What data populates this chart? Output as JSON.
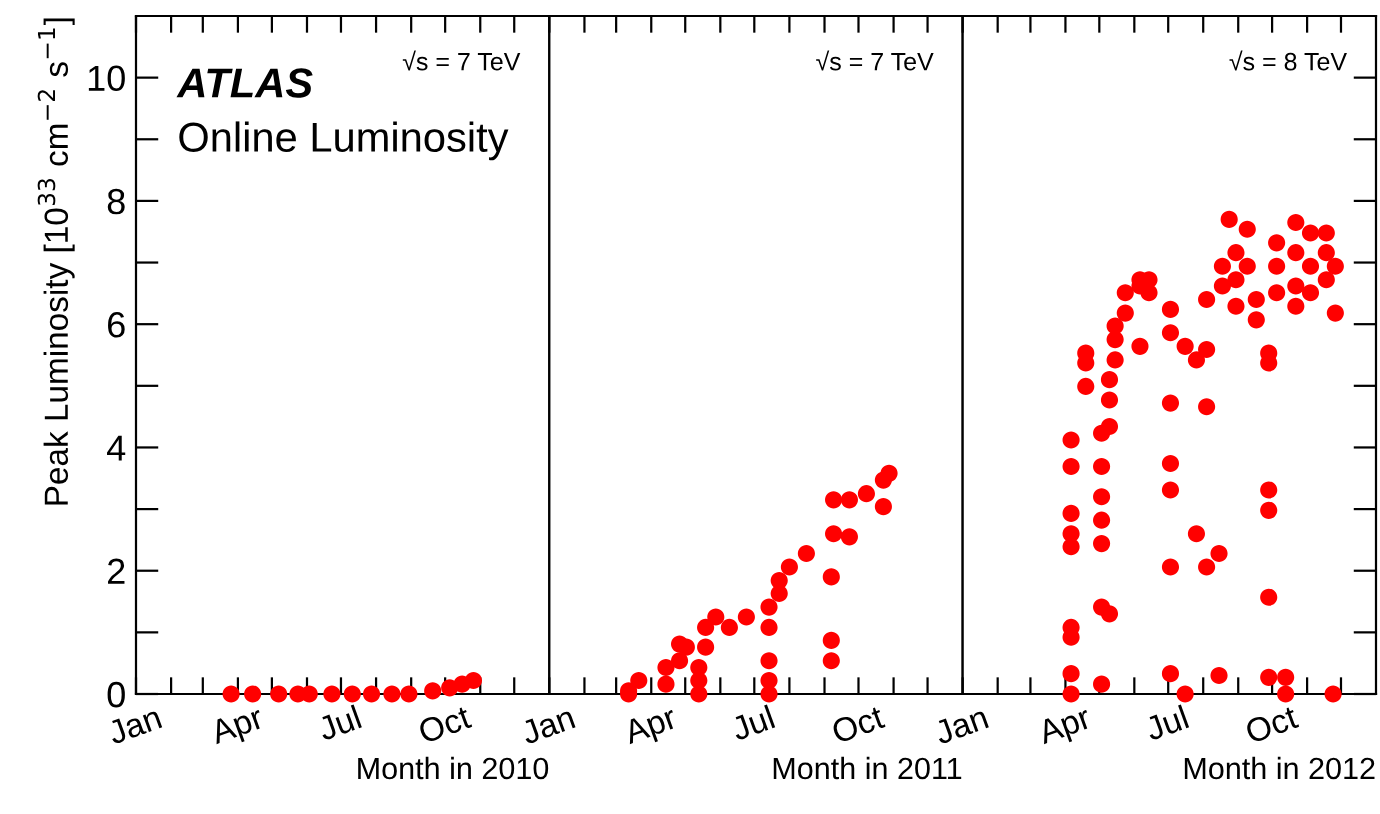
{
  "chart_data": [
    {
      "type": "scatter",
      "xlabel": "Month in 2010",
      "ylabel": "Peak Luminosity [10$^{33}$ cm$^{−2}$ s$^{−1}$]",
      "annotations": [
        "ATLAS",
        "Online Luminosity",
        "√s = 7 TeV"
      ],
      "x": [
        "2010-03-26",
        "2010-04-14",
        "2010-05-07",
        "2010-05-24",
        "2010-06-03",
        "2010-06-23",
        "2010-07-11",
        "2010-07-28",
        "2010-08-15",
        "2010-08-30",
        "2010-09-20",
        "2010-10-05",
        "2010-10-16",
        "2010-10-26"
      ],
      "values": [
        0,
        0,
        0,
        0,
        0,
        0,
        0,
        0,
        0,
        0,
        0.05,
        0.1,
        0.16,
        0.22
      ],
      "color": "#ff0000",
      "marker": "circle",
      "xlim": [
        "2010-01-01",
        "2011-01-01"
      ],
      "ylim": [
        0,
        11
      ],
      "xticks": [
        {
          "value": "2010-01-01",
          "label": "Jan"
        },
        {
          "value": "2010-02-01",
          "label": null
        },
        {
          "value": "2010-03-01",
          "label": null
        },
        {
          "value": "2010-04-01",
          "label": "Apr"
        },
        {
          "value": "2010-05-01",
          "label": null
        },
        {
          "value": "2010-06-01",
          "label": null
        },
        {
          "value": "2010-07-01",
          "label": "Jul"
        },
        {
          "value": "2010-08-01",
          "label": null
        },
        {
          "value": "2010-09-01",
          "label": null
        },
        {
          "value": "2010-10-01",
          "label": "Oct"
        },
        {
          "value": "2010-11-01",
          "label": null
        },
        {
          "value": "2010-12-01",
          "label": null
        }
      ],
      "yticks": [
        0,
        {
          "value": 1,
          "label": null
        },
        2,
        {
          "value": 3,
          "label": null
        },
        4,
        {
          "value": 5,
          "label": null
        },
        6,
        {
          "value": 7,
          "label": null
        },
        8,
        {
          "value": 9,
          "label": null
        },
        10
      ]
    },
    {
      "type": "scatter",
      "xlabel": "Month in 2011",
      "annotations": [
        "√s = 7 TeV"
      ],
      "x": [
        "2011-03-12",
        "2011-03-12",
        "2011-03-21",
        "2011-04-14",
        "2011-04-14",
        "2011-04-26",
        "2011-04-26",
        "2011-05-02",
        "2011-05-13",
        "2011-05-13",
        "2011-05-13",
        "2011-05-19",
        "2011-05-19",
        "2011-05-28",
        "2011-06-09",
        "2011-06-24",
        "2011-07-14",
        "2011-07-14",
        "2011-07-14",
        "2011-07-14",
        "2011-07-14",
        "2011-07-23",
        "2011-07-23",
        "2011-08-01",
        "2011-08-16",
        "2011-09-07",
        "2011-09-07",
        "2011-09-07",
        "2011-09-09",
        "2011-09-09",
        "2011-09-23",
        "2011-09-23",
        "2011-10-08",
        "2011-10-23",
        "2011-10-23",
        "2011-10-28"
      ],
      "values": [
        0,
        0.05,
        0.22,
        0.16,
        0.43,
        0.54,
        0.81,
        0.76,
        0,
        0.22,
        0.43,
        0.76,
        1.08,
        1.25,
        1.08,
        1.25,
        0,
        0.22,
        0.54,
        1.08,
        1.41,
        1.63,
        1.84,
        2.06,
        2.28,
        0.54,
        0.87,
        1.9,
        2.6,
        3.15,
        2.55,
        3.15,
        3.25,
        3.47,
        3.04,
        3.58
      ],
      "color": "#ff0000",
      "marker": "circle",
      "xlim": [
        "2011-01-01",
        "2012-01-01"
      ],
      "ylim": [
        0,
        11
      ],
      "tick_labels": "x",
      "xticks": [
        {
          "value": "2011-01-01",
          "label": "Jan"
        },
        {
          "value": "2011-02-01",
          "label": null
        },
        {
          "value": "2011-03-01",
          "label": null
        },
        {
          "value": "2011-04-01",
          "label": "Apr"
        },
        {
          "value": "2011-05-01",
          "label": null
        },
        {
          "value": "2011-06-01",
          "label": null
        },
        {
          "value": "2011-07-01",
          "label": "Jul"
        },
        {
          "value": "2011-08-01",
          "label": null
        },
        {
          "value": "2011-09-01",
          "label": null
        },
        {
          "value": "2011-10-01",
          "label": "Oct"
        },
        {
          "value": "2011-11-01",
          "label": null
        },
        {
          "value": "2011-12-01",
          "label": null
        }
      ]
    },
    {
      "type": "scatter",
      "xlabel": "Month in 2012",
      "annotations": [
        "√s = 8 TeV"
      ],
      "x": [
        "2012-04-06",
        "2012-04-06",
        "2012-04-06",
        "2012-04-06",
        "2012-04-06",
        "2012-04-06",
        "2012-04-06",
        "2012-04-06",
        "2012-04-06",
        "2012-04-19",
        "2012-04-19",
        "2012-04-19",
        "2012-05-03",
        "2012-05-03",
        "2012-05-03",
        "2012-05-03",
        "2012-05-03",
        "2012-05-03",
        "2012-05-03",
        "2012-05-10",
        "2012-05-10",
        "2012-05-10",
        "2012-05-10",
        "2012-05-15",
        "2012-05-15",
        "2012-05-15",
        "2012-05-24",
        "2012-05-24",
        "2012-06-06",
        "2012-06-06",
        "2012-06-06",
        "2012-06-14",
        "2012-06-14",
        "2012-07-03",
        "2012-07-03",
        "2012-07-03",
        "2012-07-03",
        "2012-07-03",
        "2012-07-03",
        "2012-07-03",
        "2012-07-16",
        "2012-07-16",
        "2012-07-26",
        "2012-07-26",
        "2012-08-04",
        "2012-08-04",
        "2012-08-04",
        "2012-08-04",
        "2012-08-15",
        "2012-08-15",
        "2012-08-18",
        "2012-08-18",
        "2012-08-24",
        "2012-08-30",
        "2012-08-30",
        "2012-08-30",
        "2012-09-09",
        "2012-09-09",
        "2012-09-17",
        "2012-09-17",
        "2012-09-28",
        "2012-09-28",
        "2012-09-28",
        "2012-09-28",
        "2012-09-28",
        "2012-09-28",
        "2012-10-05",
        "2012-10-05",
        "2012-10-05",
        "2012-10-13",
        "2012-10-13",
        "2012-10-22",
        "2012-10-22",
        "2012-10-22",
        "2012-10-22",
        "2012-11-04",
        "2012-11-04",
        "2012-11-04",
        "2012-11-18",
        "2012-11-18",
        "2012-11-18",
        "2012-11-26",
        "2012-11-26",
        "2012-11-24"
      ],
      "values": [
        0,
        0.33,
        0.92,
        1.08,
        2.39,
        2.6,
        2.93,
        3.69,
        4.12,
        4.99,
        5.37,
        5.53,
        0.16,
        1.41,
        2.44,
        2.82,
        3.2,
        3.69,
        4.23,
        1.3,
        4.34,
        4.77,
        5.1,
        5.42,
        5.75,
        5.97,
        6.18,
        6.51,
        6.62,
        6.72,
        5.64,
        6.51,
        6.72,
        6.24,
        5.86,
        4.72,
        3.74,
        3.31,
        2.06,
        0.33,
        5.64,
        0,
        5.42,
        2.6,
        6.4,
        5.59,
        4.66,
        2.06,
        2.28,
        0.3,
        6.94,
        6.62,
        7.7,
        7.16,
        6.72,
        6.29,
        7.54,
        6.94,
        6.4,
        6.07,
        5.53,
        5.37,
        3.31,
        2.98,
        1.57,
        0.27,
        7.32,
        6.94,
        6.51,
        0.27,
        0,
        7.65,
        7.16,
        6.62,
        6.29,
        7.48,
        6.94,
        6.51,
        7.48,
        7.16,
        6.72,
        6.94,
        6.18,
        0
      ],
      "color": "#ff0000",
      "marker": "circle",
      "xlim": [
        "2012-01-01",
        "2013-01-01"
      ],
      "ylim": [
        0,
        11
      ],
      "tick_labels": "x",
      "xticks": [
        {
          "value": "2012-01-01",
          "label": "Jan"
        },
        {
          "value": "2012-02-01",
          "label": null
        },
        {
          "value": "2012-03-01",
          "label": null
        },
        {
          "value": "2012-04-01",
          "label": "Apr"
        },
        {
          "value": "2012-05-01",
          "label": null
        },
        {
          "value": "2012-06-01",
          "label": null
        },
        {
          "value": "2012-07-01",
          "label": "Jul"
        },
        {
          "value": "2012-08-01",
          "label": null
        },
        {
          "value": "2012-09-01",
          "label": null
        },
        {
          "value": "2012-10-01",
          "label": "Oct"
        },
        {
          "value": "2012-11-01",
          "label": null
        },
        {
          "value": "2012-12-01",
          "label": null
        }
      ],
      "yticks": [
        0,
        {
          "value": 1,
          "label": null
        },
        2,
        {
          "value": 3,
          "label": null
        },
        4,
        {
          "value": 5,
          "label": null
        },
        6,
        {
          "value": 7,
          "label": null
        },
        8,
        {
          "value": 9,
          "label": null
        },
        10
      ]
    }
  ]
}
